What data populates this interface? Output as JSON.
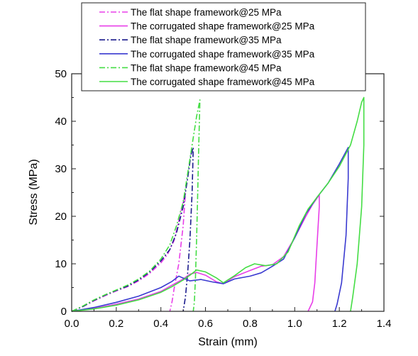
{
  "chart_data": {
    "type": "line",
    "xlabel": "Strain (mm)",
    "ylabel": "Stress (MPa)",
    "xlim": [
      0.0,
      1.4
    ],
    "ylim": [
      0,
      50
    ],
    "x_ticks": [
      0.0,
      0.2,
      0.4,
      0.6,
      0.8,
      1.0,
      1.2,
      1.4
    ],
    "x_tick_labels": [
      "0.0",
      "0.2",
      "0.4",
      "0.6",
      "0.8",
      "1.0",
      "1.2",
      "1.4"
    ],
    "y_ticks": [
      0,
      10,
      20,
      30,
      40,
      50
    ],
    "y_tick_labels": [
      "0",
      "10",
      "20",
      "30",
      "40",
      "50"
    ],
    "grid": false,
    "legend_position": "top",
    "series": [
      {
        "name": "The flat shape framework@25 MPa",
        "color": "#e83ee8",
        "style": "dashdot",
        "points": [
          [
            0.0,
            0.0
          ],
          [
            0.05,
            1.0
          ],
          [
            0.1,
            2.2
          ],
          [
            0.15,
            3.3
          ],
          [
            0.2,
            4.3
          ],
          [
            0.25,
            5.2
          ],
          [
            0.3,
            6.4
          ],
          [
            0.35,
            8.0
          ],
          [
            0.4,
            10.2
          ],
          [
            0.43,
            12.0
          ],
          [
            0.46,
            15.0
          ],
          [
            0.48,
            19.0
          ],
          [
            0.5,
            23.0
          ],
          [
            0.51,
            25.0
          ],
          [
            0.5,
            18.0
          ],
          [
            0.48,
            10.0
          ],
          [
            0.46,
            5.0
          ],
          [
            0.45,
            2.0
          ],
          [
            0.44,
            0.0
          ]
        ]
      },
      {
        "name": "The corrugated shape framework@25 MPa",
        "color": "#e83ee8",
        "style": "solid",
        "points": [
          [
            0.0,
            0.0
          ],
          [
            0.1,
            0.6
          ],
          [
            0.2,
            1.5
          ],
          [
            0.3,
            2.6
          ],
          [
            0.4,
            4.2
          ],
          [
            0.45,
            5.5
          ],
          [
            0.5,
            6.8
          ],
          [
            0.53,
            7.8
          ],
          [
            0.56,
            8.2
          ],
          [
            0.6,
            7.6
          ],
          [
            0.65,
            6.2
          ],
          [
            0.68,
            5.8
          ],
          [
            0.73,
            7.3
          ],
          [
            0.8,
            8.6
          ],
          [
            0.85,
            9.5
          ],
          [
            0.9,
            9.8
          ],
          [
            0.95,
            11.5
          ],
          [
            1.0,
            15.5
          ],
          [
            1.05,
            20.0
          ],
          [
            1.08,
            22.5
          ],
          [
            1.11,
            24.5
          ],
          [
            1.11,
            22.0
          ],
          [
            1.1,
            14.0
          ],
          [
            1.09,
            6.0
          ],
          [
            1.08,
            2.0
          ],
          [
            1.06,
            0.0
          ]
        ]
      },
      {
        "name": "The flat shape framework@35 MPa",
        "color": "#1a1a8c",
        "style": "dashdot",
        "points": [
          [
            0.0,
            0.0
          ],
          [
            0.05,
            1.0
          ],
          [
            0.1,
            2.3
          ],
          [
            0.15,
            3.4
          ],
          [
            0.2,
            4.4
          ],
          [
            0.25,
            5.3
          ],
          [
            0.3,
            6.6
          ],
          [
            0.35,
            8.3
          ],
          [
            0.4,
            10.6
          ],
          [
            0.44,
            13.0
          ],
          [
            0.47,
            16.5
          ],
          [
            0.5,
            22.0
          ],
          [
            0.52,
            28.0
          ],
          [
            0.535,
            33.0
          ],
          [
            0.545,
            34.5
          ],
          [
            0.54,
            25.0
          ],
          [
            0.53,
            15.0
          ],
          [
            0.52,
            8.0
          ],
          [
            0.51,
            3.0
          ],
          [
            0.5,
            0.0
          ]
        ]
      },
      {
        "name": "The corrugated shape framework@35 MPa",
        "color": "#3a3ad0",
        "style": "solid",
        "points": [
          [
            0.0,
            0.0
          ],
          [
            0.1,
            0.8
          ],
          [
            0.2,
            1.9
          ],
          [
            0.3,
            3.2
          ],
          [
            0.4,
            5.0
          ],
          [
            0.45,
            6.3
          ],
          [
            0.48,
            7.4
          ],
          [
            0.5,
            7.0
          ],
          [
            0.53,
            6.4
          ],
          [
            0.58,
            6.7
          ],
          [
            0.63,
            6.2
          ],
          [
            0.68,
            5.8
          ],
          [
            0.73,
            6.8
          ],
          [
            0.8,
            7.4
          ],
          [
            0.85,
            8.1
          ],
          [
            0.9,
            9.5
          ],
          [
            0.95,
            11.0
          ],
          [
            1.0,
            15.5
          ],
          [
            1.05,
            20.5
          ],
          [
            1.1,
            24.0
          ],
          [
            1.15,
            27.0
          ],
          [
            1.2,
            31.0
          ],
          [
            1.24,
            34.5
          ],
          [
            1.24,
            28.0
          ],
          [
            1.23,
            16.0
          ],
          [
            1.21,
            6.0
          ],
          [
            1.19,
            1.5
          ],
          [
            1.18,
            0.0
          ]
        ]
      },
      {
        "name": "The flat shape framework@45 MPa",
        "color": "#44dd44",
        "style": "dashdot",
        "points": [
          [
            0.0,
            0.0
          ],
          [
            0.05,
            1.1
          ],
          [
            0.1,
            2.4
          ],
          [
            0.15,
            3.5
          ],
          [
            0.2,
            4.5
          ],
          [
            0.25,
            5.5
          ],
          [
            0.3,
            6.8
          ],
          [
            0.35,
            8.5
          ],
          [
            0.4,
            11.0
          ],
          [
            0.44,
            14.0
          ],
          [
            0.47,
            18.0
          ],
          [
            0.5,
            23.0
          ],
          [
            0.52,
            29.0
          ],
          [
            0.54,
            35.0
          ],
          [
            0.56,
            41.0
          ],
          [
            0.575,
            44.5
          ],
          [
            0.57,
            35.0
          ],
          [
            0.565,
            25.0
          ],
          [
            0.56,
            15.0
          ],
          [
            0.555,
            7.0
          ],
          [
            0.55,
            2.0
          ],
          [
            0.545,
            0.0
          ]
        ]
      },
      {
        "name": "The corrugated shape framework@45 MPa",
        "color": "#44dd44",
        "style": "solid",
        "points": [
          [
            0.0,
            0.0
          ],
          [
            0.1,
            0.5
          ],
          [
            0.2,
            1.3
          ],
          [
            0.3,
            2.4
          ],
          [
            0.4,
            4.0
          ],
          [
            0.45,
            5.2
          ],
          [
            0.5,
            6.6
          ],
          [
            0.53,
            7.6
          ],
          [
            0.56,
            8.7
          ],
          [
            0.6,
            8.3
          ],
          [
            0.65,
            7.0
          ],
          [
            0.68,
            6.0
          ],
          [
            0.73,
            7.5
          ],
          [
            0.78,
            9.2
          ],
          [
            0.82,
            10.0
          ],
          [
            0.87,
            9.6
          ],
          [
            0.92,
            10.0
          ],
          [
            0.97,
            12.5
          ],
          [
            1.02,
            18.0
          ],
          [
            1.06,
            21.5
          ],
          [
            1.1,
            24.0
          ],
          [
            1.15,
            27.0
          ],
          [
            1.2,
            30.5
          ],
          [
            1.25,
            35.0
          ],
          [
            1.28,
            40.0
          ],
          [
            1.3,
            44.0
          ],
          [
            1.31,
            45.0
          ],
          [
            1.31,
            35.0
          ],
          [
            1.3,
            22.0
          ],
          [
            1.28,
            10.0
          ],
          [
            1.26,
            3.0
          ],
          [
            1.25,
            0.0
          ]
        ]
      }
    ]
  }
}
